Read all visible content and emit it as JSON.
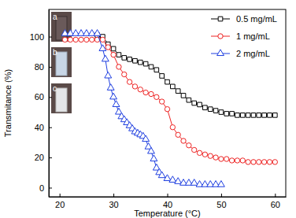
{
  "chart_data": {
    "type": "line",
    "x_label": "Temperature (°C)",
    "y_label": "Transmitance (%)",
    "annotations": [
      "a",
      "b",
      "c"
    ],
    "xlim": [
      18,
      62
    ],
    "xticks": [
      20,
      30,
      40,
      50,
      60
    ],
    "ylim": [
      -6,
      118
    ],
    "yticks": [
      0,
      20,
      40,
      60,
      80,
      100
    ],
    "legend": "top-right",
    "series": [
      {
        "name": "0.5 mg/mL",
        "color": "#000000",
        "marker": "square",
        "x": [
          27,
          28,
          29,
          30,
          31,
          32,
          33,
          34,
          35,
          36,
          37,
          38,
          39,
          40,
          41,
          42,
          43,
          44,
          45,
          46,
          47,
          48,
          49,
          50,
          51,
          52,
          53,
          54,
          55,
          56,
          57,
          58,
          59,
          60
        ],
        "values": [
          101,
          100,
          95,
          92,
          88,
          86,
          85,
          84,
          83,
          82,
          80,
          78,
          74,
          70,
          67,
          64,
          61,
          58,
          56,
          55,
          53,
          52,
          51,
          50,
          49,
          49,
          48,
          48,
          48,
          48,
          48,
          48,
          48,
          48
        ]
      },
      {
        "name": "1 mg/mL",
        "color": "#ee2222",
        "marker": "circle",
        "x": [
          21,
          22,
          23,
          24,
          25,
          26,
          27,
          28,
          29,
          30,
          31,
          32,
          33,
          34,
          35,
          36,
          37,
          38,
          39,
          40,
          41,
          42,
          43,
          44,
          45,
          46,
          47,
          48,
          49,
          50,
          51,
          52,
          53,
          54,
          55,
          56,
          57,
          58,
          59,
          60
        ],
        "values": [
          98,
          98,
          98,
          98,
          98,
          98,
          98,
          98,
          93,
          88,
          80,
          75,
          70,
          67,
          65,
          63,
          62,
          60,
          57,
          52,
          40,
          35,
          31,
          28,
          25,
          23,
          22,
          21,
          20,
          19,
          19,
          18,
          18,
          18,
          17,
          17,
          17,
          17,
          17,
          17
        ]
      },
      {
        "name": "2 mg/mL",
        "color": "#1f3fe0",
        "marker": "triangle",
        "x": [
          21,
          22,
          23,
          24,
          25,
          26,
          27,
          28,
          28.5,
          29,
          29.5,
          30,
          30.5,
          31,
          31.5,
          32,
          32.5,
          33,
          33.5,
          34,
          34.5,
          35,
          35.5,
          36,
          36.5,
          37,
          37.5,
          38,
          38.5,
          39,
          40,
          41,
          42,
          43,
          44,
          45,
          46,
          47,
          48,
          49,
          50
        ],
        "values": [
          102,
          102,
          102,
          102,
          102,
          102,
          102,
          92,
          85,
          74,
          66,
          60,
          55,
          50,
          47,
          45,
          43,
          41,
          39,
          37,
          36,
          35,
          34,
          32,
          27,
          24,
          19,
          13,
          10,
          8,
          6,
          5,
          4,
          3,
          3,
          3,
          2,
          2,
          2,
          2,
          2
        ]
      }
    ]
  }
}
